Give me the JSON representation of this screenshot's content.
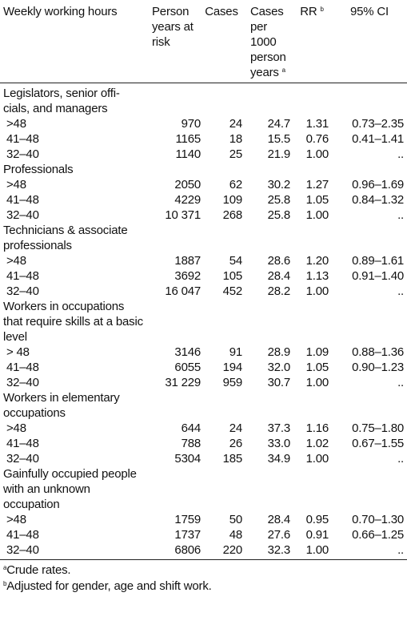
{
  "header": {
    "col0": "Weekly working hours",
    "col1": "Person years at risk",
    "col2": "Cases",
    "col3": "Cases per 1000 person years",
    "col3_mark": "a",
    "col4": "RR",
    "col4_mark": "b",
    "col5": "95% CI"
  },
  "groups": [
    {
      "title": "Legislators, senior offi-cials, and managers",
      "rows": [
        {
          "hours": ">48",
          "py": "970",
          "cases": "24",
          "rate": "24.7",
          "rr": "1.31",
          "ci": "0.73–2.35"
        },
        {
          "hours": "41–48",
          "py": "1165",
          "cases": "18",
          "rate": "15.5",
          "rr": "0.76",
          "ci": "0.41–1.41"
        },
        {
          "hours": "32–40",
          "py": "1140",
          "cases": "25",
          "rate": "21.9",
          "rr": "1.00",
          "ci": ".."
        }
      ]
    },
    {
      "title": "Professionals",
      "rows": [
        {
          "hours": ">48",
          "py": "2050",
          "cases": "62",
          "rate": "30.2",
          "rr": "1.27",
          "ci": "0.96–1.69"
        },
        {
          "hours": "41–48",
          "py": "4229",
          "cases": "109",
          "rate": "25.8",
          "rr": "1.05",
          "ci": "0.84–1.32"
        },
        {
          "hours": "32–40",
          "py": "10 371",
          "cases": "268",
          "rate": "25.8",
          "rr": "1.00",
          "ci": ".."
        }
      ]
    },
    {
      "title": "Technicians & associate professionals",
      "rows": [
        {
          "hours": ">48",
          "py": "1887",
          "cases": "54",
          "rate": "28.6",
          "rr": "1.20",
          "ci": "0.89–1.61"
        },
        {
          "hours": "41–48",
          "py": "3692",
          "cases": "105",
          "rate": "28.4",
          "rr": "1.13",
          "ci": "0.91–1.40"
        },
        {
          "hours": "32–40",
          "py": "16 047",
          "cases": "452",
          "rate": "28.2",
          "rr": "1.00",
          "ci": ".."
        }
      ]
    },
    {
      "title": "Workers in occupations that require skills at a basic level",
      "rows": [
        {
          "hours": "> 48",
          "py": "3146",
          "cases": "91",
          "rate": "28.9",
          "rr": "1.09",
          "ci": "0.88–1.36"
        },
        {
          "hours": "41–48",
          "py": "6055",
          "cases": "194",
          "rate": "32.0",
          "rr": "1.05",
          "ci": "0.90–1.23"
        },
        {
          "hours": "32–40",
          "py": "31 229",
          "cases": "959",
          "rate": "30.7",
          "rr": "1.00",
          "ci": ".."
        }
      ]
    },
    {
      "title": "Workers in elementary occupations",
      "rows": [
        {
          "hours": ">48",
          "py": "644",
          "cases": "24",
          "rate": "37.3",
          "rr": "1.16",
          "ci": "0.75–1.80"
        },
        {
          "hours": "41–48",
          "py": "788",
          "cases": "26",
          "rate": "33.0",
          "rr": "1.02",
          "ci": "0.67–1.55"
        },
        {
          "hours": "32–40",
          "py": "5304",
          "cases": "185",
          "rate": "34.9",
          "rr": "1.00",
          "ci": ".."
        }
      ]
    },
    {
      "title": "Gainfully occupied people with an unknown occupation",
      "rows": [
        {
          "hours": ">48",
          "py": "1759",
          "cases": "50",
          "rate": "28.4",
          "rr": "0.95",
          "ci": "0.70–1.30"
        },
        {
          "hours": "41–48",
          "py": "1737",
          "cases": "48",
          "rate": "27.6",
          "rr": "0.91",
          "ci": "0.66–1.25"
        },
        {
          "hours": "32–40",
          "py": "6806",
          "cases": "220",
          "rate": "32.3",
          "rr": "1.00",
          "ci": ".."
        }
      ]
    }
  ],
  "footnotes": [
    {
      "mark": "a",
      "text": "Crude rates."
    },
    {
      "mark": "b",
      "text": "Adjusted for gender, age and shift work."
    }
  ]
}
